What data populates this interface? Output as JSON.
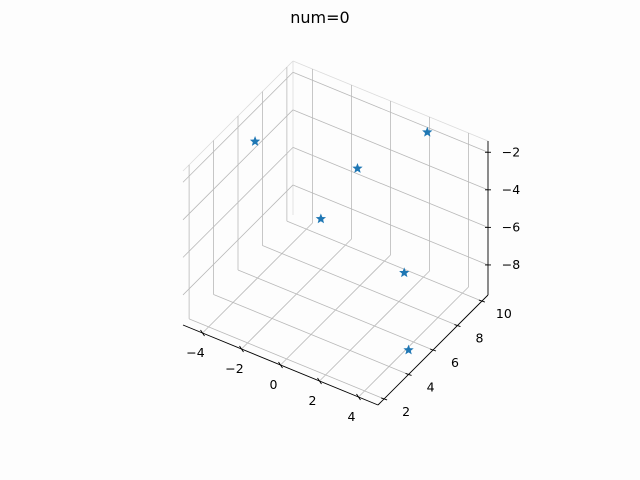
{
  "chart_data": {
    "type": "scatter",
    "projection": "3d",
    "title": "num=0",
    "marker": "star",
    "color": "#1f77b4",
    "grid": true,
    "xlabel": "",
    "ylabel": "",
    "zlabel": "",
    "xlim": [
      -5,
      5
    ],
    "ylim": [
      1.5,
      10.5
    ],
    "zlim": [
      -9.6,
      -1.4
    ],
    "x_ticks": [
      -4,
      -2,
      0,
      2,
      4
    ],
    "y_ticks": [
      2,
      4,
      6,
      8,
      10
    ],
    "z_ticks": [
      -2,
      -4,
      -6,
      -8
    ],
    "x_tick_labels": [
      "−4",
      "−2",
      "0",
      "2",
      "4"
    ],
    "y_tick_labels": [
      "2",
      "4",
      "6",
      "8",
      "10"
    ],
    "z_tick_labels": [
      "−2",
      "−4",
      "−6",
      "−8"
    ],
    "points": [
      {
        "x": -4.0,
        "y": 5.8,
        "z": -2.2
      },
      {
        "x": 2.2,
        "y": 10.0,
        "z": -1.8
      },
      {
        "x": 0.5,
        "y": 7.0,
        "z": -2.5
      },
      {
        "x": -0.5,
        "y": 5.6,
        "z": -4.7
      },
      {
        "x": 3.4,
        "y": 6.2,
        "z": -6.3
      },
      {
        "x": 5.0,
        "y": 4.0,
        "z": -8.3
      }
    ]
  }
}
